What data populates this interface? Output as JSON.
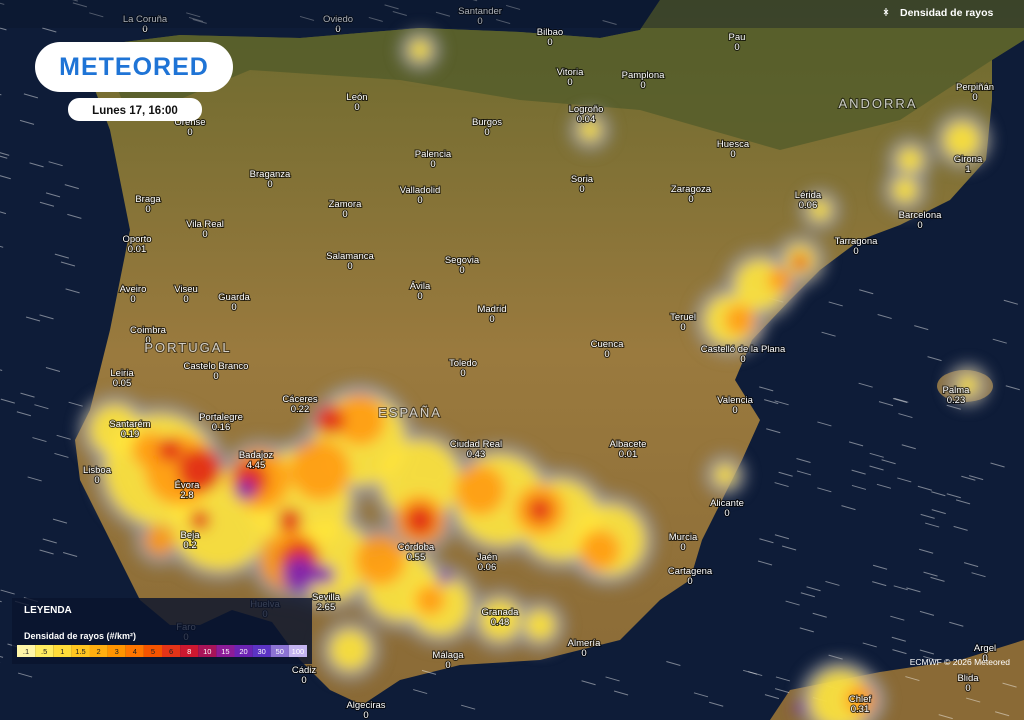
{
  "header": {
    "logo": "METEORED",
    "timestamp": "Lunes 17, 16:00",
    "layer_title": "Densidad de rayos"
  },
  "regions": [
    "ANDORRA",
    "PORTUGAL",
    "ESPAÑA"
  ],
  "cities": [
    {
      "name": "La Coruña",
      "value": "0"
    },
    {
      "name": "Oviedo",
      "value": "0"
    },
    {
      "name": "Santander",
      "value": "0"
    },
    {
      "name": "Bilbao",
      "value": "0"
    },
    {
      "name": "Pau",
      "value": "0"
    },
    {
      "name": "Vitoria",
      "value": "0"
    },
    {
      "name": "Pamplona",
      "value": "0"
    },
    {
      "name": "Perpiñán",
      "value": "0"
    },
    {
      "name": "León",
      "value": "0"
    },
    {
      "name": "Orense",
      "value": "0"
    },
    {
      "name": "Burgos",
      "value": "0"
    },
    {
      "name": "Logroño",
      "value": "0.04"
    },
    {
      "name": "Huesca",
      "value": "0"
    },
    {
      "name": "Girona",
      "value": "1"
    },
    {
      "name": "Palencia",
      "value": "0"
    },
    {
      "name": "Braganza",
      "value": "0"
    },
    {
      "name": "Soria",
      "value": "0"
    },
    {
      "name": "Zaragoza",
      "value": "0"
    },
    {
      "name": "Valladolid",
      "value": "0"
    },
    {
      "name": "Braga",
      "value": "0"
    },
    {
      "name": "Lérida",
      "value": "0.06"
    },
    {
      "name": "Zamora",
      "value": "0"
    },
    {
      "name": "Barcelona",
      "value": "0"
    },
    {
      "name": "Vila Real",
      "value": "0"
    },
    {
      "name": "Oporto",
      "value": "0.01"
    },
    {
      "name": "Tarragona",
      "value": "0"
    },
    {
      "name": "Segovia",
      "value": "0"
    },
    {
      "name": "Salamanca",
      "value": "0"
    },
    {
      "name": "Aveiro",
      "value": "0"
    },
    {
      "name": "Viseu",
      "value": "0"
    },
    {
      "name": "Ávila",
      "value": "0"
    },
    {
      "name": "Guarda",
      "value": "0"
    },
    {
      "name": "Madrid",
      "value": "0"
    },
    {
      "name": "Teruel",
      "value": "0"
    },
    {
      "name": "Coimbra",
      "value": "0"
    },
    {
      "name": "Cuenca",
      "value": "0"
    },
    {
      "name": "Castelló de la Plana",
      "value": "0"
    },
    {
      "name": "Leiria",
      "value": "0.05"
    },
    {
      "name": "Castelo Branco",
      "value": "0"
    },
    {
      "name": "Toledo",
      "value": "0"
    },
    {
      "name": "Palma",
      "value": "0.23"
    },
    {
      "name": "Valencia",
      "value": "0"
    },
    {
      "name": "Cáceres",
      "value": "0.22"
    },
    {
      "name": "Portalegre",
      "value": "0.16"
    },
    {
      "name": "Santarém",
      "value": "0.19"
    },
    {
      "name": "Ciudad Real",
      "value": "0.43"
    },
    {
      "name": "Albacete",
      "value": "0.01"
    },
    {
      "name": "Badajoz",
      "value": "4.45"
    },
    {
      "name": "Lisboa",
      "value": "0"
    },
    {
      "name": "Évora",
      "value": "2.8"
    },
    {
      "name": "Alicante",
      "value": "0"
    },
    {
      "name": "Beja",
      "value": "0.2"
    },
    {
      "name": "Córdoba",
      "value": "0.55"
    },
    {
      "name": "Murcia",
      "value": "0"
    },
    {
      "name": "Jaén",
      "value": "0.06"
    },
    {
      "name": "Cartagena",
      "value": "0"
    },
    {
      "name": "Sevilla",
      "value": "2.65"
    },
    {
      "name": "Huelva",
      "value": "0"
    },
    {
      "name": "Granada",
      "value": "0.48"
    },
    {
      "name": "Faro",
      "value": "0"
    },
    {
      "name": "Almería",
      "value": "0"
    },
    {
      "name": "Argel",
      "value": "0"
    },
    {
      "name": "Málaga",
      "value": "0"
    },
    {
      "name": "Blida",
      "value": "0"
    },
    {
      "name": "Cádiz",
      "value": "0"
    },
    {
      "name": "Chlef",
      "value": "0.31"
    },
    {
      "name": "Algeciras",
      "value": "0"
    }
  ],
  "legend": {
    "title": "LEYENDA",
    "subtitle": "Densidad de rayos (#/km²)",
    "ticks": [
      ".1",
      ".5",
      "1",
      "1.5",
      "2",
      "3",
      "4",
      "5",
      "6",
      "8",
      "10",
      "15",
      "20",
      "30",
      "50",
      "100"
    ],
    "colors": [
      "#fff6a8",
      "#ffec60",
      "#ffdc3a",
      "#ffc620",
      "#ffae10",
      "#ff9400",
      "#ff7600",
      "#f45400",
      "#e43418",
      "#cc1830",
      "#a81458",
      "#8c1c98",
      "#6c24b4",
      "#5c34c4",
      "#8c74d4",
      "#c4b4f0"
    ]
  },
  "credit": "ECMWF © 2026 Meteored"
}
